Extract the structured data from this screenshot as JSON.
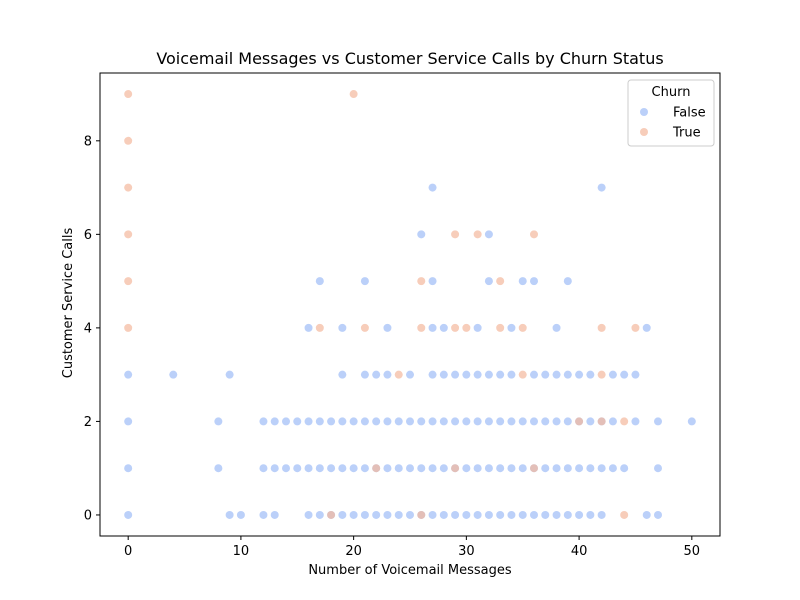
{
  "chart_data": {
    "type": "scatter",
    "title": "Voicemail Messages vs Customer Service Calls by Churn Status",
    "xlabel": "Number of Voicemail Messages",
    "ylabel": "Customer Service Calls",
    "xlim": [
      -2.5,
      52.5
    ],
    "ylim": [
      -0.45,
      9.45
    ],
    "xticks": [
      0,
      10,
      20,
      30,
      40,
      50
    ],
    "yticks": [
      0,
      2,
      4,
      6,
      8
    ],
    "legend": {
      "title": "Churn",
      "position": "top-right"
    },
    "series": [
      {
        "name": "False",
        "color": "#9ebcf7",
        "points": [
          [
            0,
            0
          ],
          [
            9,
            0
          ],
          [
            10,
            0
          ],
          [
            12,
            0
          ],
          [
            13,
            0
          ],
          [
            16,
            0
          ],
          [
            17,
            0
          ],
          [
            18,
            0
          ],
          [
            19,
            0
          ],
          [
            20,
            0
          ],
          [
            21,
            0
          ],
          [
            22,
            0
          ],
          [
            23,
            0
          ],
          [
            24,
            0
          ],
          [
            25,
            0
          ],
          [
            26,
            0
          ],
          [
            27,
            0
          ],
          [
            28,
            0
          ],
          [
            29,
            0
          ],
          [
            30,
            0
          ],
          [
            31,
            0
          ],
          [
            32,
            0
          ],
          [
            33,
            0
          ],
          [
            34,
            0
          ],
          [
            35,
            0
          ],
          [
            36,
            0
          ],
          [
            37,
            0
          ],
          [
            38,
            0
          ],
          [
            39,
            0
          ],
          [
            40,
            0
          ],
          [
            41,
            0
          ],
          [
            42,
            0
          ],
          [
            46,
            0
          ],
          [
            47,
            0
          ],
          [
            0,
            1
          ],
          [
            8,
            1
          ],
          [
            12,
            1
          ],
          [
            13,
            1
          ],
          [
            14,
            1
          ],
          [
            15,
            1
          ],
          [
            16,
            1
          ],
          [
            17,
            1
          ],
          [
            18,
            1
          ],
          [
            19,
            1
          ],
          [
            20,
            1
          ],
          [
            21,
            1
          ],
          [
            22,
            1
          ],
          [
            23,
            1
          ],
          [
            24,
            1
          ],
          [
            25,
            1
          ],
          [
            26,
            1
          ],
          [
            27,
            1
          ],
          [
            28,
            1
          ],
          [
            29,
            1
          ],
          [
            30,
            1
          ],
          [
            31,
            1
          ],
          [
            32,
            1
          ],
          [
            33,
            1
          ],
          [
            34,
            1
          ],
          [
            35,
            1
          ],
          [
            36,
            1
          ],
          [
            37,
            1
          ],
          [
            38,
            1
          ],
          [
            39,
            1
          ],
          [
            40,
            1
          ],
          [
            41,
            1
          ],
          [
            42,
            1
          ],
          [
            43,
            1
          ],
          [
            44,
            1
          ],
          [
            47,
            1
          ],
          [
            0,
            2
          ],
          [
            8,
            2
          ],
          [
            12,
            2
          ],
          [
            13,
            2
          ],
          [
            14,
            2
          ],
          [
            15,
            2
          ],
          [
            16,
            2
          ],
          [
            17,
            2
          ],
          [
            18,
            2
          ],
          [
            19,
            2
          ],
          [
            20,
            2
          ],
          [
            21,
            2
          ],
          [
            22,
            2
          ],
          [
            23,
            2
          ],
          [
            24,
            2
          ],
          [
            25,
            2
          ],
          [
            26,
            2
          ],
          [
            27,
            2
          ],
          [
            28,
            2
          ],
          [
            29,
            2
          ],
          [
            30,
            2
          ],
          [
            31,
            2
          ],
          [
            32,
            2
          ],
          [
            33,
            2
          ],
          [
            34,
            2
          ],
          [
            35,
            2
          ],
          [
            36,
            2
          ],
          [
            37,
            2
          ],
          [
            38,
            2
          ],
          [
            39,
            2
          ],
          [
            40,
            2
          ],
          [
            41,
            2
          ],
          [
            42,
            2
          ],
          [
            43,
            2
          ],
          [
            45,
            2
          ],
          [
            47,
            2
          ],
          [
            50,
            2
          ],
          [
            0,
            3
          ],
          [
            4,
            3
          ],
          [
            9,
            3
          ],
          [
            19,
            3
          ],
          [
            21,
            3
          ],
          [
            22,
            3
          ],
          [
            23,
            3
          ],
          [
            25,
            3
          ],
          [
            27,
            3
          ],
          [
            28,
            3
          ],
          [
            29,
            3
          ],
          [
            30,
            3
          ],
          [
            31,
            3
          ],
          [
            32,
            3
          ],
          [
            33,
            3
          ],
          [
            34,
            3
          ],
          [
            36,
            3
          ],
          [
            37,
            3
          ],
          [
            38,
            3
          ],
          [
            39,
            3
          ],
          [
            40,
            3
          ],
          [
            41,
            3
          ],
          [
            43,
            3
          ],
          [
            44,
            3
          ],
          [
            45,
            3
          ],
          [
            16,
            4
          ],
          [
            19,
            4
          ],
          [
            23,
            4
          ],
          [
            27,
            4
          ],
          [
            28,
            4
          ],
          [
            31,
            4
          ],
          [
            34,
            4
          ],
          [
            38,
            4
          ],
          [
            46,
            4
          ],
          [
            17,
            5
          ],
          [
            21,
            5
          ],
          [
            27,
            5
          ],
          [
            32,
            5
          ],
          [
            35,
            5
          ],
          [
            36,
            5
          ],
          [
            39,
            5
          ],
          [
            26,
            6
          ],
          [
            32,
            6
          ],
          [
            27,
            7
          ],
          [
            42,
            7
          ]
        ]
      },
      {
        "name": "True",
        "color": "#f4b89c",
        "points": [
          [
            0,
            4
          ],
          [
            0,
            5
          ],
          [
            0,
            6
          ],
          [
            0,
            7
          ],
          [
            0,
            8
          ],
          [
            0,
            9
          ],
          [
            20,
            9
          ],
          [
            17,
            4
          ],
          [
            21,
            4
          ],
          [
            26,
            4
          ],
          [
            29,
            4
          ],
          [
            30,
            4
          ],
          [
            33,
            4
          ],
          [
            35,
            4
          ],
          [
            42,
            4
          ],
          [
            45,
            4
          ],
          [
            26,
            5
          ],
          [
            33,
            5
          ],
          [
            29,
            6
          ],
          [
            31,
            6
          ],
          [
            36,
            6
          ],
          [
            24,
            3
          ],
          [
            35,
            3
          ],
          [
            42,
            3
          ],
          [
            40,
            2
          ],
          [
            42,
            2
          ],
          [
            44,
            2
          ],
          [
            22,
            1
          ],
          [
            29,
            1
          ],
          [
            36,
            1
          ],
          [
            18,
            0
          ],
          [
            26,
            0
          ],
          [
            44,
            0
          ]
        ]
      }
    ]
  }
}
